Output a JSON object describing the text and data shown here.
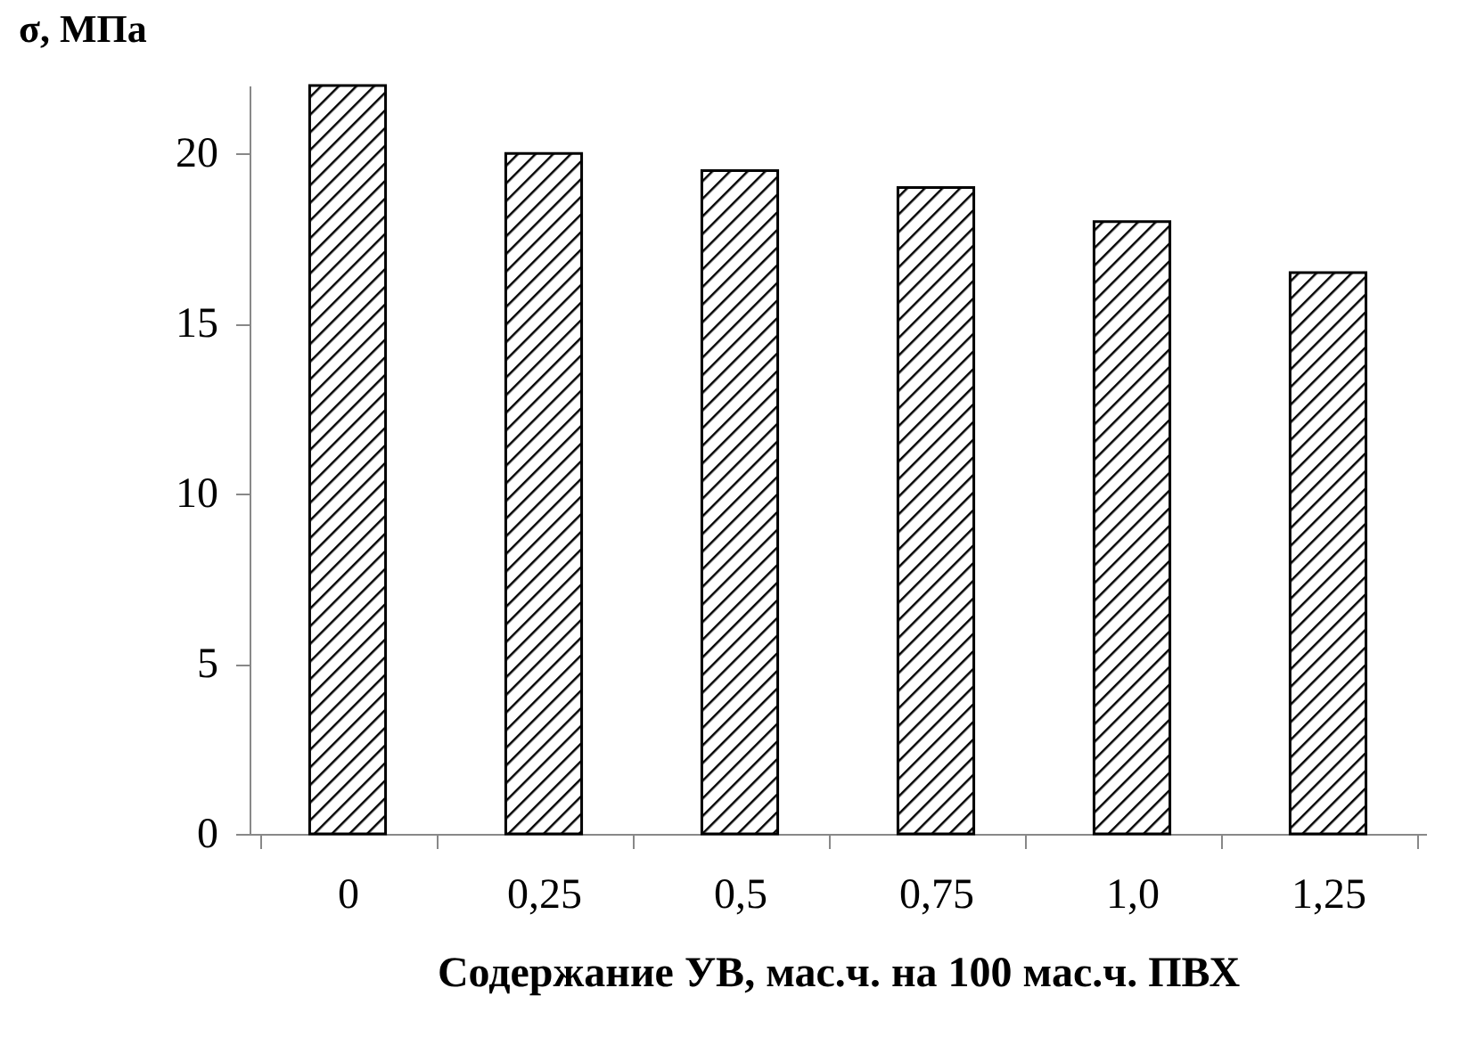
{
  "chart_data": {
    "type": "bar",
    "xlabel": "Содержание УВ, мас.ч. на 100 мас.ч. ПВХ",
    "ylabel": "σ, МПа",
    "categories": [
      "0",
      "0,25",
      "0,5",
      "0,75",
      "1,0",
      "1,25"
    ],
    "values": [
      22,
      20,
      19.5,
      19,
      18,
      16.5
    ],
    "color": "#000000",
    "ylim": [
      0,
      22
    ],
    "yticks": [
      0,
      5,
      10,
      15,
      20
    ],
    "grid": false
  }
}
